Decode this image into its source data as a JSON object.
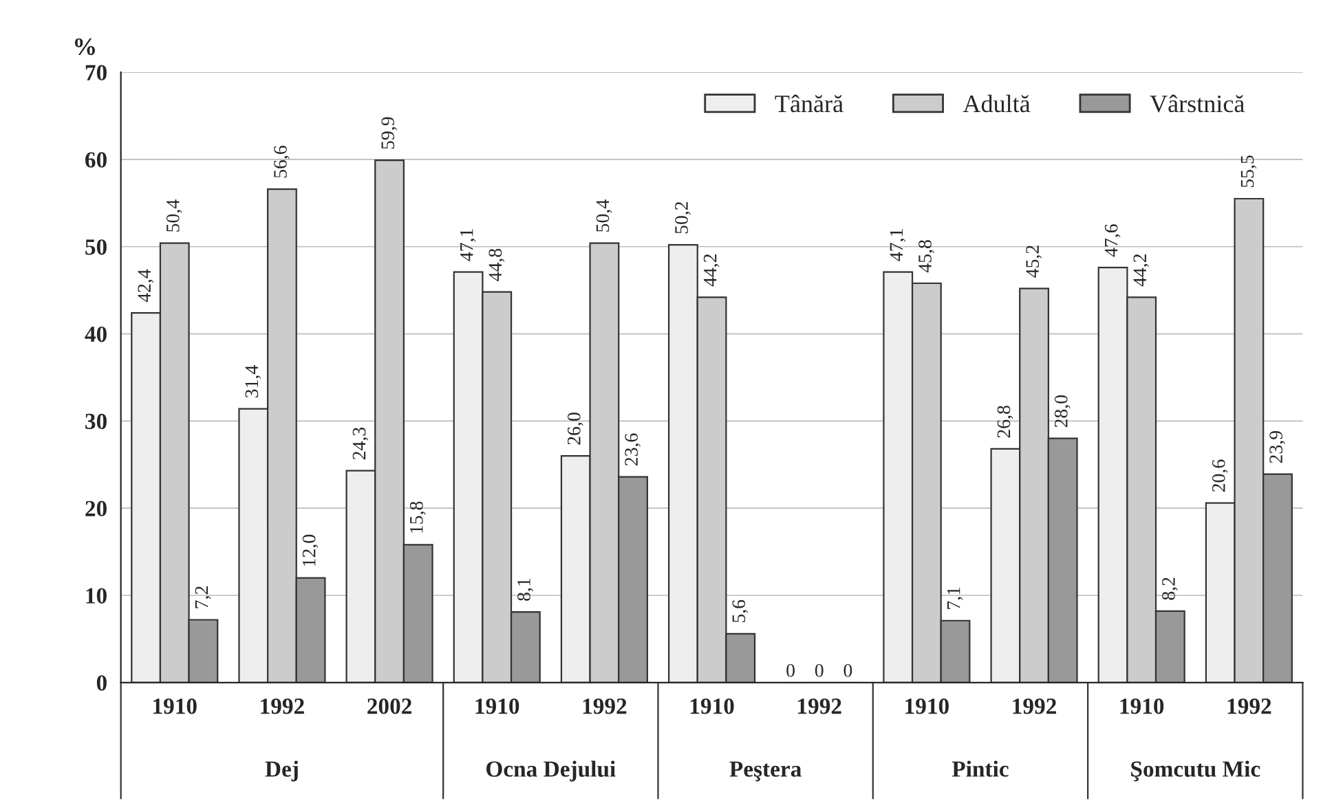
{
  "chart_data": {
    "type": "bar",
    "ylabel": "%",
    "categories": [
      "1910",
      "1992",
      "2002",
      "1910",
      "1992",
      "1910",
      "1992",
      "1910",
      "1992",
      "1910",
      "1992"
    ],
    "series": [
      {
        "name": "Tânără",
        "color": "#eeeeee",
        "values": [
          42.4,
          31.4,
          24.3,
          47.1,
          26.0,
          50.2,
          0,
          47.1,
          26.8,
          47.6,
          20.6
        ],
        "value_labels": [
          "42,4",
          "31,4",
          "24,3",
          "47,1",
          "26,0",
          "50,2",
          "0",
          "47,1",
          "26,8",
          "47,6",
          "20,6"
        ]
      },
      {
        "name": "Adultă",
        "color": "#cccccc",
        "values": [
          50.4,
          56.6,
          59.9,
          44.8,
          50.4,
          44.2,
          0,
          45.8,
          45.2,
          44.2,
          55.5
        ],
        "value_labels": [
          "50,4",
          "56,6",
          "59,9",
          "44,8",
          "50,4",
          "44,2",
          "0",
          "45,8",
          "45,2",
          "44,2",
          "55,5"
        ]
      },
      {
        "name": "Vârstnică",
        "color": "#999999",
        "values": [
          7.2,
          12.0,
          15.8,
          8.1,
          23.6,
          5.6,
          0,
          7.1,
          28.0,
          8.2,
          23.9
        ],
        "value_labels": [
          "7,2",
          "12,0",
          "15,8",
          "8,1",
          "23,6",
          "5,6",
          "0",
          "7,1",
          "28,0",
          "8,2",
          "23,9"
        ]
      }
    ],
    "annotations": [
      "Dej",
      "Ocna Dejului",
      "Peştera",
      "Pintic",
      "Şomcutu Mic"
    ],
    "ylim": [
      0,
      70
    ],
    "yticks": [
      0,
      10,
      20,
      30,
      40,
      50,
      60,
      70
    ],
    "grid": "y",
    "legend": "top right"
  }
}
